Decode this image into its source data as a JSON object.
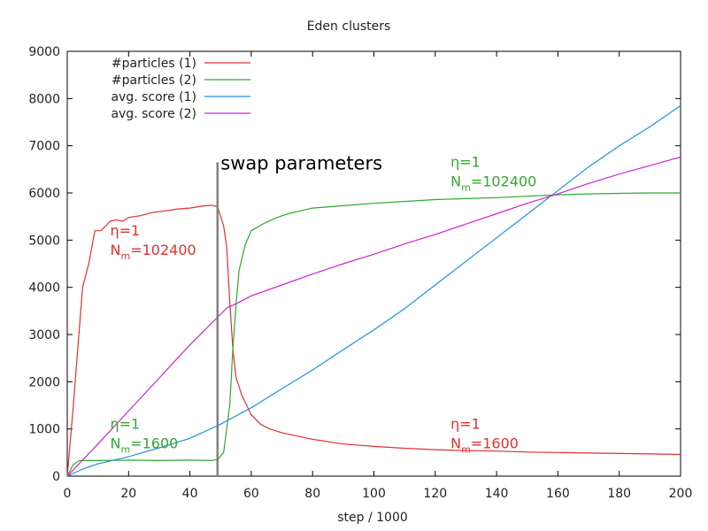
{
  "chart_data": {
    "type": "line",
    "title": "Eden clusters",
    "xlabel": "step / 1000",
    "ylabel": "",
    "xlim": [
      0,
      200
    ],
    "ylim": [
      0,
      9000
    ],
    "xticks": [
      0,
      20,
      40,
      60,
      80,
      100,
      120,
      140,
      160,
      180,
      200
    ],
    "yticks": [
      0,
      1000,
      2000,
      3000,
      4000,
      5000,
      6000,
      7000,
      8000,
      9000
    ],
    "grid": false,
    "legend_position": "top-left",
    "series": [
      {
        "name": "#particles (1)",
        "color": "#e03030",
        "points": [
          [
            0,
            0
          ],
          [
            2,
            1500
          ],
          [
            5,
            4000
          ],
          [
            7,
            4500
          ],
          [
            9,
            5200
          ],
          [
            11,
            5200
          ],
          [
            14,
            5400
          ],
          [
            16,
            5430
          ],
          [
            18,
            5400
          ],
          [
            20,
            5480
          ],
          [
            24,
            5520
          ],
          [
            28,
            5590
          ],
          [
            32,
            5620
          ],
          [
            36,
            5660
          ],
          [
            40,
            5680
          ],
          [
            44,
            5720
          ],
          [
            47,
            5740
          ],
          [
            49,
            5710
          ],
          [
            51,
            5300
          ],
          [
            52,
            4850
          ],
          [
            53,
            3700
          ],
          [
            54,
            2700
          ],
          [
            55,
            2100
          ],
          [
            57,
            1700
          ],
          [
            60,
            1300
          ],
          [
            63,
            1100
          ],
          [
            66,
            1000
          ],
          [
            70,
            920
          ],
          [
            75,
            850
          ],
          [
            80,
            780
          ],
          [
            90,
            680
          ],
          [
            100,
            630
          ],
          [
            110,
            590
          ],
          [
            120,
            560
          ],
          [
            130,
            540
          ],
          [
            140,
            530
          ],
          [
            150,
            510
          ],
          [
            160,
            500
          ],
          [
            170,
            490
          ],
          [
            180,
            480
          ],
          [
            190,
            470
          ],
          [
            200,
            460
          ]
        ]
      },
      {
        "name": "#particles (2)",
        "color": "#30a830",
        "points": [
          [
            0,
            0
          ],
          [
            2,
            250
          ],
          [
            4,
            330
          ],
          [
            10,
            330
          ],
          [
            20,
            340
          ],
          [
            30,
            330
          ],
          [
            40,
            340
          ],
          [
            47,
            330
          ],
          [
            49,
            350
          ],
          [
            51,
            500
          ],
          [
            53,
            1500
          ],
          [
            54,
            2700
          ],
          [
            55,
            3600
          ],
          [
            56,
            4350
          ],
          [
            58,
            4900
          ],
          [
            60,
            5200
          ],
          [
            64,
            5350
          ],
          [
            68,
            5470
          ],
          [
            72,
            5560
          ],
          [
            76,
            5620
          ],
          [
            80,
            5680
          ],
          [
            90,
            5730
          ],
          [
            100,
            5780
          ],
          [
            110,
            5820
          ],
          [
            120,
            5860
          ],
          [
            130,
            5880
          ],
          [
            140,
            5900
          ],
          [
            150,
            5930
          ],
          [
            160,
            5960
          ],
          [
            170,
            5980
          ],
          [
            180,
            5990
          ],
          [
            190,
            6000
          ],
          [
            200,
            6000
          ]
        ]
      },
      {
        "name": "avg. score (1)",
        "color": "#2090e0",
        "points": [
          [
            0,
            0
          ],
          [
            5,
            150
          ],
          [
            10,
            260
          ],
          [
            20,
            410
          ],
          [
            30,
            600
          ],
          [
            40,
            800
          ],
          [
            50,
            1100
          ],
          [
            60,
            1450
          ],
          [
            70,
            1850
          ],
          [
            80,
            2250
          ],
          [
            90,
            2680
          ],
          [
            100,
            3100
          ],
          [
            110,
            3550
          ],
          [
            120,
            4050
          ],
          [
            130,
            4550
          ],
          [
            140,
            5050
          ],
          [
            150,
            5550
          ],
          [
            160,
            6050
          ],
          [
            170,
            6550
          ],
          [
            180,
            7000
          ],
          [
            190,
            7400
          ],
          [
            200,
            7850
          ]
        ]
      },
      {
        "name": "avg. score (2)",
        "color": "#d020d0",
        "points": [
          [
            0,
            0
          ],
          [
            10,
            680
          ],
          [
            20,
            1380
          ],
          [
            30,
            2080
          ],
          [
            40,
            2780
          ],
          [
            48,
            3300
          ],
          [
            52,
            3560
          ],
          [
            56,
            3680
          ],
          [
            60,
            3820
          ],
          [
            70,
            4050
          ],
          [
            80,
            4280
          ],
          [
            90,
            4500
          ],
          [
            100,
            4700
          ],
          [
            110,
            4920
          ],
          [
            120,
            5120
          ],
          [
            130,
            5340
          ],
          [
            140,
            5560
          ],
          [
            150,
            5780
          ],
          [
            160,
            5980
          ],
          [
            170,
            6200
          ],
          [
            180,
            6400
          ],
          [
            190,
            6580
          ],
          [
            200,
            6760
          ]
        ]
      }
    ],
    "vline": {
      "x": 49,
      "y0": 0,
      "y1": 6650,
      "color": "#808080"
    },
    "annotations": [
      {
        "text": "swap parameters",
        "x": 50,
        "y": 6500,
        "color": "#000000",
        "style": "big"
      },
      {
        "eta": "η=1",
        "nm_prefix": "N",
        "nm_sub": "m",
        "nm_value": "=102400",
        "x": 14,
        "y": 5100,
        "color": "#e03030"
      },
      {
        "eta": "η=1",
        "nm_prefix": "N",
        "nm_sub": "m",
        "nm_value": "=1600",
        "x": 14,
        "y": 1000,
        "color": "#30a830"
      },
      {
        "eta": "η=1",
        "nm_prefix": "N",
        "nm_sub": "m",
        "nm_value": "=102400",
        "x": 125,
        "y": 6550,
        "color": "#30a830"
      },
      {
        "eta": "η=1",
        "nm_prefix": "N",
        "nm_sub": "m",
        "nm_value": "=1600",
        "x": 125,
        "y": 1000,
        "color": "#e03030"
      }
    ]
  }
}
